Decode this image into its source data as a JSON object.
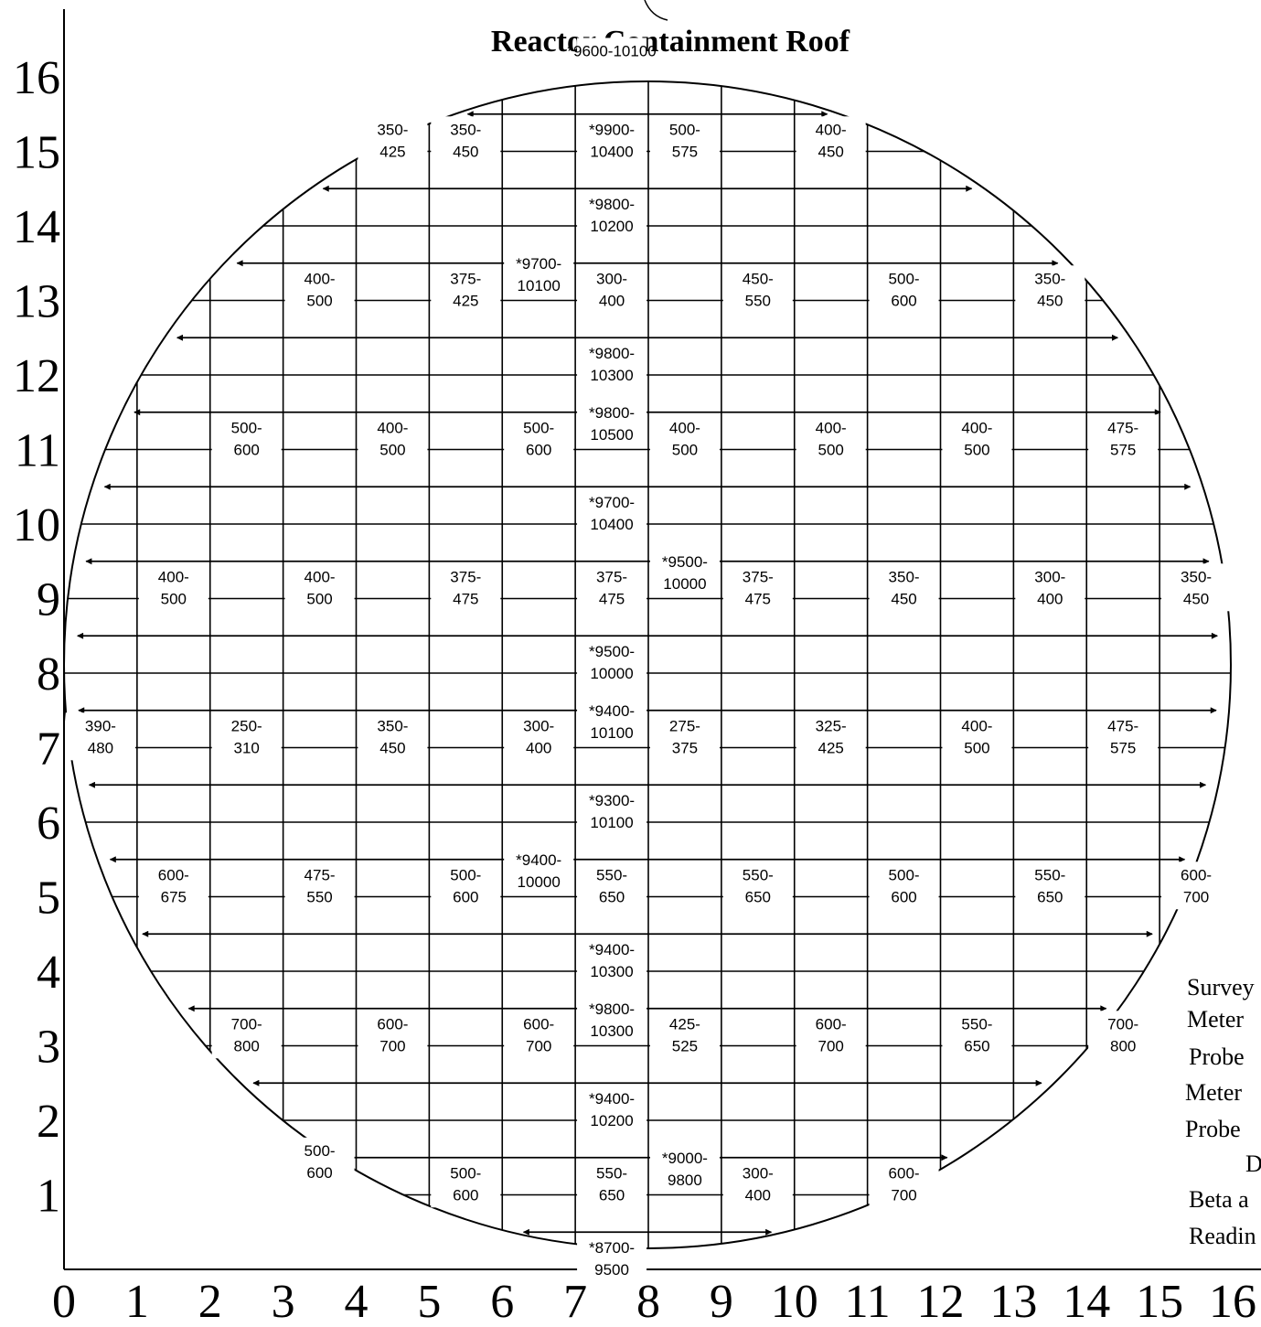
{
  "title": "Reactor Containment Roof",
  "x_ticks": [
    "0",
    "1",
    "2",
    "3",
    "4",
    "5",
    "6",
    "7",
    "8",
    "9",
    "10",
    "11",
    "12",
    "13",
    "14",
    "15",
    "16"
  ],
  "y_ticks": [
    "1",
    "2",
    "3",
    "4",
    "5",
    "6",
    "7",
    "8",
    "9",
    "10",
    "11",
    "12",
    "13",
    "14",
    "15",
    "16"
  ],
  "legend_lines": [
    "Survey",
    "Meter",
    "Probe",
    "Meter",
    "Probe",
    "D",
    "Beta a",
    "Readin"
  ],
  "cells": [
    {
      "col": 4.5,
      "row": 15.15,
      "l1": "350-",
      "l2": "425"
    },
    {
      "col": 5.5,
      "row": 15.15,
      "l1": "350-",
      "l2": "450"
    },
    {
      "col": 7.5,
      "row": 15.15,
      "l1": "*9900-",
      "l2": "10400"
    },
    {
      "col": 8.5,
      "row": 15.15,
      "l1": "500-",
      "l2": "575"
    },
    {
      "col": 10.5,
      "row": 15.15,
      "l1": "400-",
      "l2": "450"
    },
    {
      "col": 7.5,
      "row": 16.35,
      "l1": "*9600-10100",
      "l2": ""
    },
    {
      "col": 7.5,
      "row": 14.15,
      "l1": "*9800-",
      "l2": "10200"
    },
    {
      "col": 3.5,
      "row": 13.15,
      "l1": "400-",
      "l2": "500"
    },
    {
      "col": 5.5,
      "row": 13.15,
      "l1": "375-",
      "l2": "425"
    },
    {
      "col": 6.5,
      "row": 13.35,
      "l1": "*9700-",
      "l2": "10100"
    },
    {
      "col": 7.5,
      "row": 13.15,
      "l1": "300-",
      "l2": "400"
    },
    {
      "col": 9.5,
      "row": 13.15,
      "l1": "450-",
      "l2": "550"
    },
    {
      "col": 11.5,
      "row": 13.15,
      "l1": "500-",
      "l2": "600"
    },
    {
      "col": 13.5,
      "row": 13.15,
      "l1": "350-",
      "l2": "450"
    },
    {
      "col": 7.5,
      "row": 12.15,
      "l1": "*9800-",
      "l2": "10300"
    },
    {
      "col": 2.5,
      "row": 11.15,
      "l1": "500-",
      "l2": "600"
    },
    {
      "col": 4.5,
      "row": 11.15,
      "l1": "400-",
      "l2": "500"
    },
    {
      "col": 6.5,
      "row": 11.15,
      "l1": "500-",
      "l2": "600"
    },
    {
      "col": 7.5,
      "row": 11.35,
      "l1": "*9800-",
      "l2": "10500"
    },
    {
      "col": 8.5,
      "row": 11.15,
      "l1": "400-",
      "l2": "500"
    },
    {
      "col": 10.5,
      "row": 11.15,
      "l1": "400-",
      "l2": "500"
    },
    {
      "col": 12.5,
      "row": 11.15,
      "l1": "400-",
      "l2": "500"
    },
    {
      "col": 14.5,
      "row": 11.15,
      "l1": "475-",
      "l2": "575"
    },
    {
      "col": 7.5,
      "row": 10.15,
      "l1": "*9700-",
      "l2": "10400"
    },
    {
      "col": 1.5,
      "row": 9.15,
      "l1": "400-",
      "l2": "500"
    },
    {
      "col": 3.5,
      "row": 9.15,
      "l1": "400-",
      "l2": "500"
    },
    {
      "col": 5.5,
      "row": 9.15,
      "l1": "375-",
      "l2": "475"
    },
    {
      "col": 7.5,
      "row": 9.15,
      "l1": "375-",
      "l2": "475"
    },
    {
      "col": 8.5,
      "row": 9.35,
      "l1": "*9500-",
      "l2": "10000"
    },
    {
      "col": 9.5,
      "row": 9.15,
      "l1": "375-",
      "l2": "475"
    },
    {
      "col": 11.5,
      "row": 9.15,
      "l1": "350-",
      "l2": "450"
    },
    {
      "col": 13.5,
      "row": 9.15,
      "l1": "300-",
      "l2": "400"
    },
    {
      "col": 15.5,
      "row": 9.15,
      "l1": "350-",
      "l2": "450"
    },
    {
      "col": 7.5,
      "row": 8.15,
      "l1": "*9500-",
      "l2": "10000"
    },
    {
      "col": 0.5,
      "row": 7.15,
      "l1": "390-",
      "l2": "480"
    },
    {
      "col": 2.5,
      "row": 7.15,
      "l1": "250-",
      "l2": "310"
    },
    {
      "col": 4.5,
      "row": 7.15,
      "l1": "350-",
      "l2": "450"
    },
    {
      "col": 6.5,
      "row": 7.15,
      "l1": "300-",
      "l2": "400"
    },
    {
      "col": 7.5,
      "row": 7.35,
      "l1": "*9400-",
      "l2": "10100"
    },
    {
      "col": 8.5,
      "row": 7.15,
      "l1": "275-",
      "l2": "375"
    },
    {
      "col": 10.5,
      "row": 7.15,
      "l1": "325-",
      "l2": "425"
    },
    {
      "col": 12.5,
      "row": 7.15,
      "l1": "400-",
      "l2": "500"
    },
    {
      "col": 14.5,
      "row": 7.15,
      "l1": "475-",
      "l2": "575"
    },
    {
      "col": 7.5,
      "row": 6.15,
      "l1": "*9300-",
      "l2": "10100"
    },
    {
      "col": 1.5,
      "row": 5.15,
      "l1": "600-",
      "l2": "675"
    },
    {
      "col": 3.5,
      "row": 5.15,
      "l1": "475-",
      "l2": "550"
    },
    {
      "col": 5.5,
      "row": 5.15,
      "l1": "500-",
      "l2": "600"
    },
    {
      "col": 6.5,
      "row": 5.35,
      "l1": "*9400-",
      "l2": "10000"
    },
    {
      "col": 7.5,
      "row": 5.15,
      "l1": "550-",
      "l2": "650"
    },
    {
      "col": 9.5,
      "row": 5.15,
      "l1": "550-",
      "l2": "650"
    },
    {
      "col": 11.5,
      "row": 5.15,
      "l1": "500-",
      "l2": "600"
    },
    {
      "col": 13.5,
      "row": 5.15,
      "l1": "550-",
      "l2": "650"
    },
    {
      "col": 15.5,
      "row": 5.15,
      "l1": "600-",
      "l2": "700"
    },
    {
      "col": 7.5,
      "row": 4.15,
      "l1": "*9400-",
      "l2": "10300"
    },
    {
      "col": 2.5,
      "row": 3.15,
      "l1": "700-",
      "l2": "800"
    },
    {
      "col": 4.5,
      "row": 3.15,
      "l1": "600-",
      "l2": "700"
    },
    {
      "col": 6.5,
      "row": 3.15,
      "l1": "600-",
      "l2": "700"
    },
    {
      "col": 7.5,
      "row": 3.35,
      "l1": "*9800-",
      "l2": "10300"
    },
    {
      "col": 8.5,
      "row": 3.15,
      "l1": "425-",
      "l2": "525"
    },
    {
      "col": 10.5,
      "row": 3.15,
      "l1": "600-",
      "l2": "700"
    },
    {
      "col": 12.5,
      "row": 3.15,
      "l1": "550-",
      "l2": "650"
    },
    {
      "col": 14.5,
      "row": 3.15,
      "l1": "700-",
      "l2": "800"
    },
    {
      "col": 7.5,
      "row": 2.15,
      "l1": "*9400-",
      "l2": "10200"
    },
    {
      "col": 3.5,
      "row": 1.45,
      "l1": "500-",
      "l2": "600"
    },
    {
      "col": 5.5,
      "row": 1.15,
      "l1": "500-",
      "l2": "600"
    },
    {
      "col": 7.5,
      "row": 1.15,
      "l1": "550-",
      "l2": "650"
    },
    {
      "col": 8.5,
      "row": 1.35,
      "l1": "*9000-",
      "l2": "9800"
    },
    {
      "col": 9.5,
      "row": 1.15,
      "l1": "300-",
      "l2": "400"
    },
    {
      "col": 11.5,
      "row": 1.15,
      "l1": "600-",
      "l2": "700"
    },
    {
      "col": 7.5,
      "row": 0.15,
      "l1": "*8700-",
      "l2": "9500"
    }
  ]
}
